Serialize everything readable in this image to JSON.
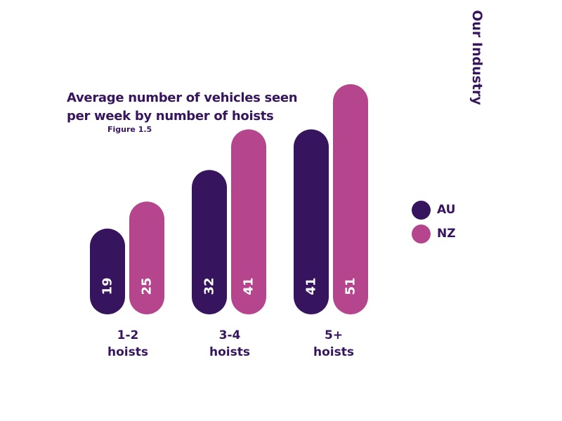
{
  "title": {
    "line1": "Average number of vehicles seen",
    "line2": "per week by number of hoists"
  },
  "figure_label": "Figure 1.5",
  "section_label": "Our Industry",
  "colors": {
    "AU": "#36155e",
    "NZ": "#b5468d",
    "text": "#36155e"
  },
  "chart_data": {
    "type": "bar",
    "title": "Average number of vehicles seen per week by number of hoists",
    "categories": [
      {
        "line1": "1-2",
        "line2": "hoists"
      },
      {
        "line1": "3-4",
        "line2": "hoists"
      },
      {
        "line1": "5+",
        "line2": "hoists"
      }
    ],
    "series": [
      {
        "name": "AU",
        "color": "#36155e",
        "values": [
          19,
          32,
          41
        ]
      },
      {
        "name": "NZ",
        "color": "#b5468d",
        "values": [
          25,
          41,
          51
        ]
      }
    ],
    "ylim": [
      0,
      51
    ],
    "grid": false,
    "legend": "right"
  }
}
